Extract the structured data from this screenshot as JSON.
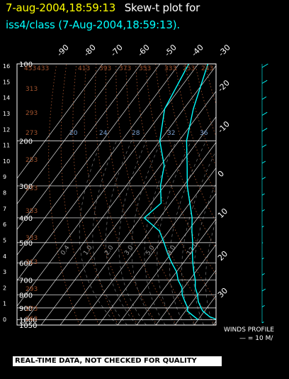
{
  "title": {
    "datetime": "7-aug-2004,18:59:13",
    "text": "Skew-t plot for",
    "subtitle": "iss4/class (7-Aug-2004,18:59:13)."
  },
  "disclaimer": "REAL-TIME DATA, NOT CHECKED FOR QUALITY",
  "winds": {
    "title": "WINDS PROFILE",
    "scale": "— = 10 M/"
  },
  "colors": {
    "datetime": "#ffff00",
    "background": "#000000",
    "trace": "#00ffff",
    "isobar": "#ffffff",
    "isotherm": "#ffffff",
    "dry_adiabat": "#a0522d",
    "moist_adiabat": "#a0522d",
    "mixing_ratio": "#777777"
  },
  "chart_data": {
    "type": "line",
    "p_ticks": [
      100,
      200,
      300,
      400,
      500,
      600,
      700,
      800,
      900,
      1000,
      1050
    ],
    "height_ticks": [
      16,
      15,
      14,
      13,
      12,
      11,
      10,
      9,
      8,
      7,
      6,
      5,
      4,
      3,
      2,
      1,
      0
    ],
    "temp_ticks_top": [
      "-90",
      "-80",
      "-70",
      "-60",
      "-50",
      "-40",
      "-30"
    ],
    "temp_ticks_right": [
      "-20",
      "-10",
      "0",
      "10",
      "20",
      "30"
    ],
    "dry_adiabat_labels": [
      "453",
      "433",
      "413",
      "393",
      "373",
      "353",
      "333",
      "313",
      "293",
      "273",
      "253",
      "233",
      "353",
      "333",
      "313",
      "293",
      "273",
      "263",
      "253",
      "243"
    ],
    "mixing_ratio_labels": [
      "20",
      "24",
      "28",
      "32",
      "36"
    ],
    "moist_adiabat_labels": [
      "0.4",
      "1.0",
      "2.0",
      "3.0",
      "5.0",
      "8.0",
      "12.0"
    ],
    "temperature": {
      "pressure": [
        1000,
        975,
        950,
        925,
        900,
        850,
        800,
        750,
        700,
        650,
        600,
        550,
        500,
        450,
        400,
        350,
        300,
        250,
        200,
        150,
        100
      ],
      "temp": [
        30,
        25,
        22,
        19,
        17,
        13,
        10,
        6,
        3,
        -1,
        -5,
        -9,
        -13,
        -18,
        -23,
        -30,
        -38,
        -46,
        -56,
        -65,
        -75
      ]
    },
    "dewpoint": {
      "pressure": [
        1000,
        975,
        950,
        925,
        900,
        850,
        800,
        750,
        700,
        650,
        600,
        550,
        500,
        450,
        400,
        350,
        300,
        250,
        200,
        150,
        100
      ],
      "td": [
        20,
        17,
        14,
        11,
        10,
        6,
        2,
        -1,
        -6,
        -10,
        -16,
        -22,
        -28,
        -35,
        -48,
        -45,
        -52,
        -58,
        -70,
        -80,
        -85
      ]
    },
    "wind_profile": {
      "height_km": [
        0,
        1,
        2,
        3,
        4,
        5,
        6,
        7,
        8,
        9,
        10,
        11,
        12,
        13,
        14,
        15,
        16
      ],
      "speed": [
        2,
        3,
        4,
        3,
        2,
        1,
        2,
        3,
        3,
        4,
        4,
        5,
        6,
        6,
        5,
        6,
        7
      ]
    }
  }
}
